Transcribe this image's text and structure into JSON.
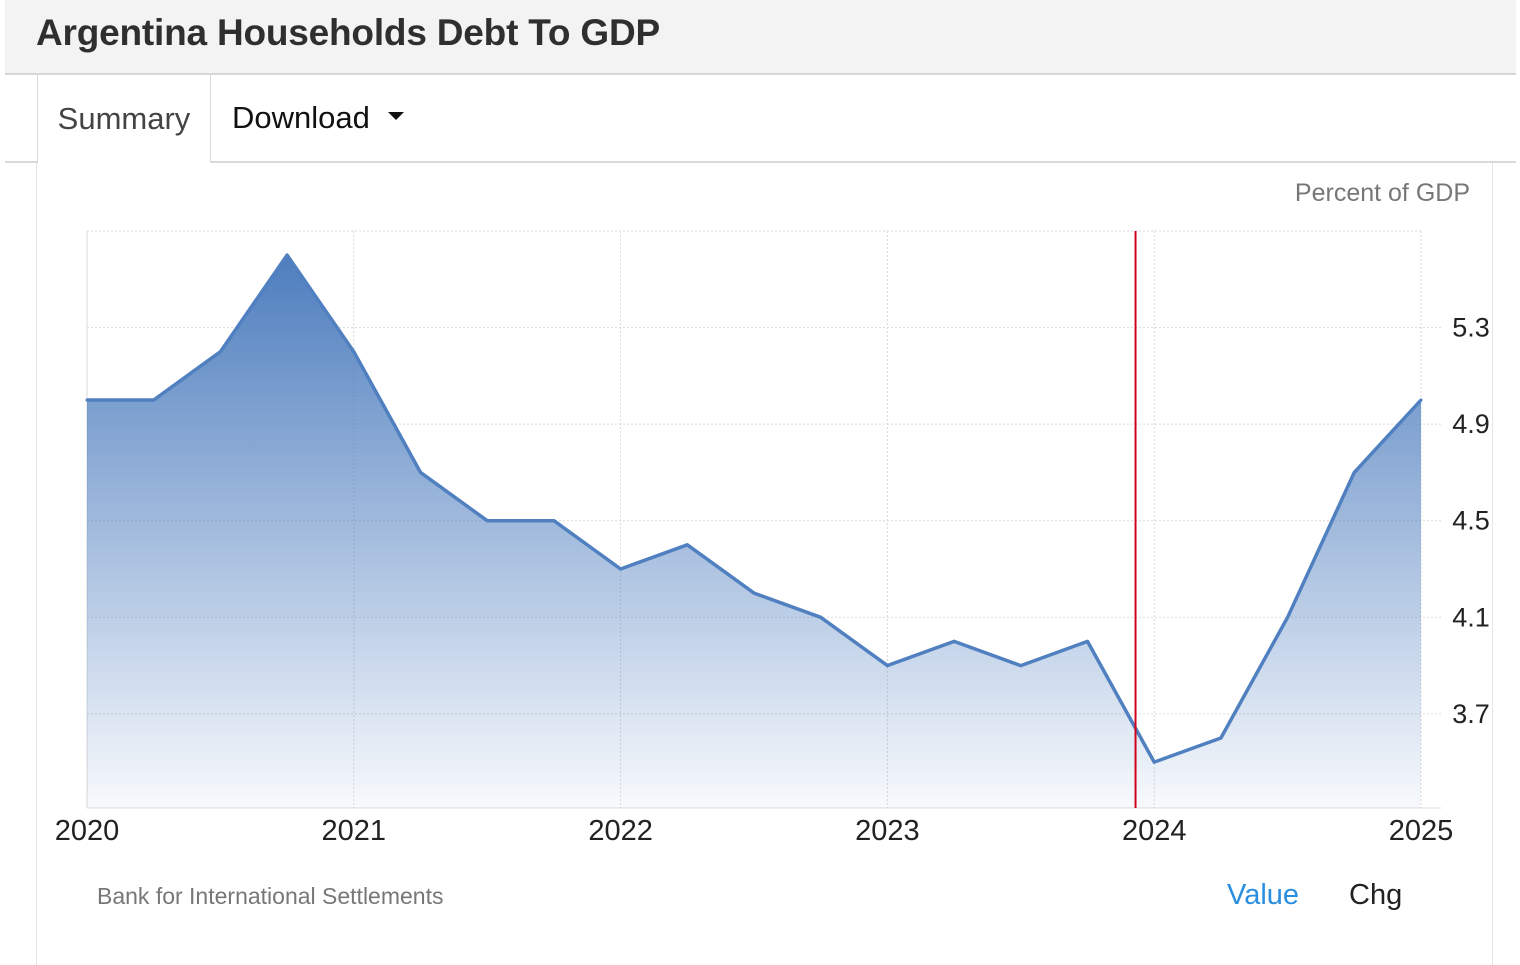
{
  "header": {
    "title": "Argentina Households Debt To GDP"
  },
  "tabs": {
    "summary_label": "Summary",
    "download_label": "Download"
  },
  "chart_meta": {
    "unit_label": "Percent of GDP",
    "source": "Bank for International Settlements",
    "value_button": "Value",
    "chg_button": "Chg"
  },
  "colors": {
    "line": "#5080c0",
    "area_top": "#4a7bbd",
    "marker": "#d0021b",
    "grid": "#d9d9d9",
    "value_active": "#2a8ee0"
  },
  "chart_data": {
    "type": "area",
    "title": "Argentina Households Debt To GDP",
    "ylabel": "Percent of GDP",
    "x_ticks": [
      "2020",
      "2021",
      "2022",
      "2023",
      "2024",
      "2025"
    ],
    "y_ticks": [
      3.7,
      4.1,
      4.5,
      4.9,
      5.3
    ],
    "xlim": [
      2020.0,
      2025.0
    ],
    "ylim": [
      3.31,
      5.7
    ],
    "grid": true,
    "y_axis_side": "right",
    "marker_x": 2023.93,
    "series": [
      {
        "x": [
          2020.0,
          2020.25,
          2020.5,
          2020.75,
          2021.0,
          2021.25,
          2021.5,
          2021.75,
          2022.0,
          2022.25,
          2022.5,
          2022.75,
          2023.0,
          2023.25,
          2023.5,
          2023.75,
          2024.0,
          2024.25,
          2024.5,
          2024.75,
          2025.0
        ],
        "values": [
          5.0,
          5.0,
          5.2,
          5.6,
          5.2,
          4.7,
          4.5,
          4.5,
          4.3,
          4.4,
          4.2,
          4.1,
          3.9,
          4.0,
          3.9,
          4.0,
          3.5,
          3.6,
          4.1,
          4.7,
          5.0
        ]
      }
    ]
  }
}
